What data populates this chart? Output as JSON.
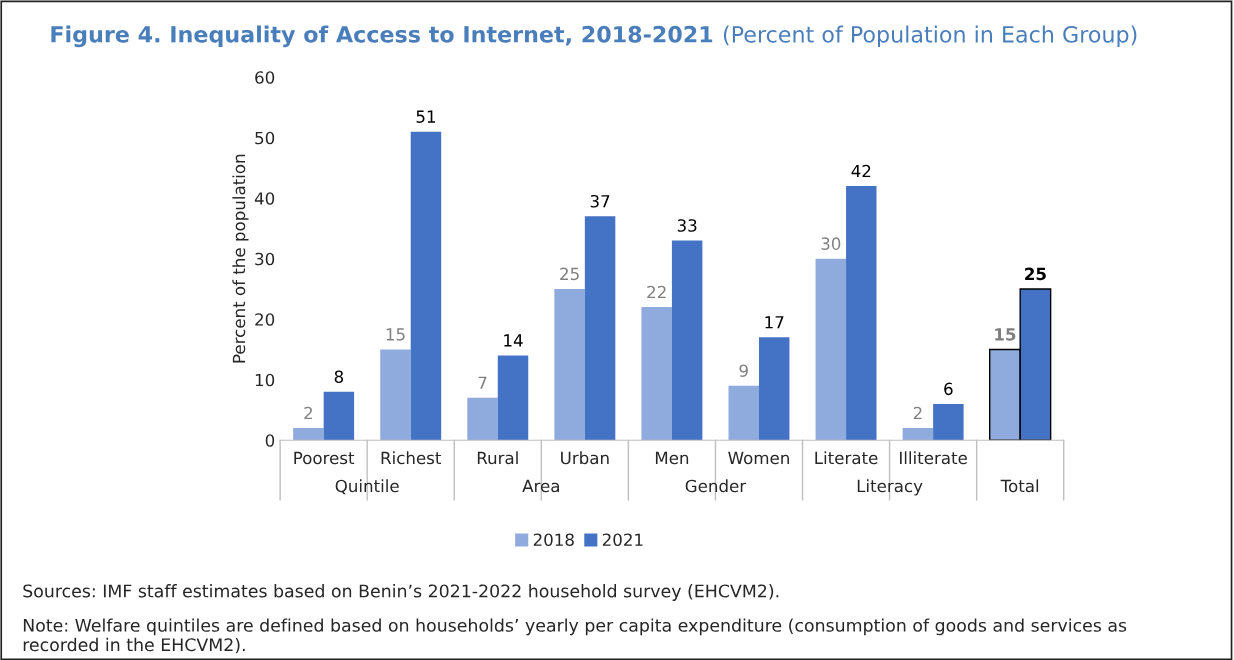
{
  "chart_data": {
    "type": "bar",
    "title": "Figure 4. Inequality of Access to Internet, 2018-2021",
    "subtitle": "(Percent of Population in Each Group)",
    "ylabel": "Percent of the population",
    "categories": [
      "Poorest",
      "Richest",
      "Rural",
      "Urban",
      "Men",
      "Women",
      "Literate",
      "Illiterate",
      null
    ],
    "series": [
      {
        "name": "2018",
        "color": "#8faadc",
        "values": [
          2,
          15,
          7,
          25,
          22,
          9,
          30,
          2,
          15
        ]
      },
      {
        "name": "2021",
        "color": "#4472c4",
        "values": [
          8,
          51,
          14,
          37,
          33,
          17,
          42,
          6,
          25
        ]
      }
    ],
    "ylim": [
      0,
      60
    ],
    "yticks": [
      0,
      10,
      20,
      30,
      40,
      50,
      60
    ],
    "grid": false,
    "legend": "bottom",
    "data_labels": true,
    "annotations": [
      "Quintile",
      "Area",
      "Gender",
      "Literacy",
      "Total",
      "Sources: IMF staff estimates based on Benin’s 2021-2022 household survey (EHCVM2).",
      "Note: Welfare quintiles are defined based on households’ yearly per capita expenditure (consumption of goods and services as recorded in the EHCVM2)."
    ]
  }
}
